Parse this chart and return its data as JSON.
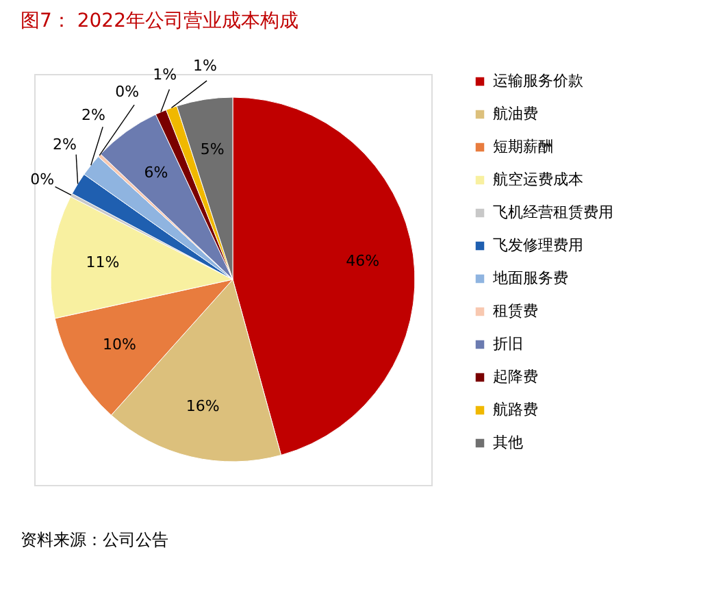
{
  "chart_data": {
    "type": "pie",
    "title": "图7：  2022年公司营业成本构成",
    "categories": [
      "运输服务价款",
      "航油费",
      "短期薪酬",
      "航空运费成本",
      "飞机经营租赁费用",
      "飞发修理费用",
      "地面服务费",
      "租赁费",
      "折旧",
      "起降费",
      "航路费",
      "其他"
    ],
    "values": [
      46,
      16,
      10,
      11,
      0.3,
      2,
      2,
      0.3,
      6,
      1,
      1,
      5
    ],
    "value_labels": [
      "46%",
      "16%",
      "10%",
      "11%",
      "0%",
      "2%",
      "2%",
      "0%",
      "6%",
      "1%",
      "1%",
      "5%"
    ],
    "colors": [
      "#c00000",
      "#dcc07c",
      "#e87c3e",
      "#f8f0a0",
      "#c8c8c8",
      "#1f5fb0",
      "#8fb4e0",
      "#f8c8b0",
      "#6b7bb0",
      "#7a0000",
      "#f0b800",
      "#707070"
    ],
    "legend": "right",
    "annotations": [
      "资料来源：公司公告"
    ]
  }
}
